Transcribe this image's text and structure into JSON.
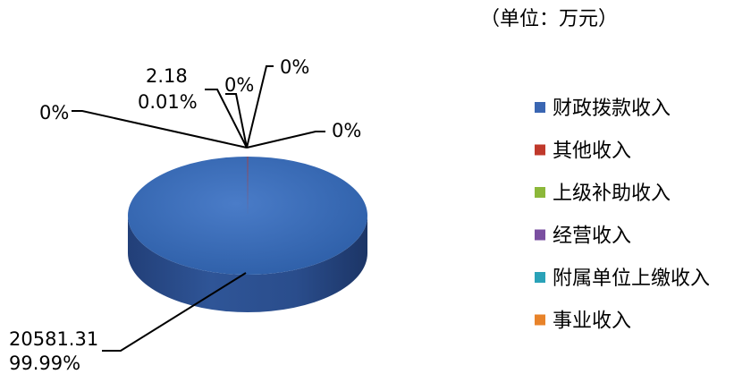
{
  "chart_data": {
    "type": "pie",
    "unit_note": "（单位：万元）",
    "legend_position": "right",
    "slices": [
      {
        "name": "财政拨款收入",
        "value": 20581.31,
        "value_label": "20581.31",
        "percent_label": "99.99%",
        "color": "#3a66b2"
      },
      {
        "name": "其他收入",
        "value": 2.18,
        "value_label": "2.18",
        "percent_label": "0.01%",
        "color": "#c0392b"
      },
      {
        "name": "上级补助收入",
        "value": 0,
        "value_label": "",
        "percent_label": "0%",
        "color": "#8cb83a"
      },
      {
        "name": "经营收入",
        "value": 0,
        "value_label": "",
        "percent_label": "0%",
        "color": "#7a4fa0"
      },
      {
        "name": "附属单位上缴收入",
        "value": 0,
        "value_label": "",
        "percent_label": "0%",
        "color": "#2aa2b8"
      },
      {
        "name": "事业收入",
        "value": 0,
        "value_label": "",
        "percent_label": "0%",
        "color": "#e8832a"
      }
    ]
  }
}
